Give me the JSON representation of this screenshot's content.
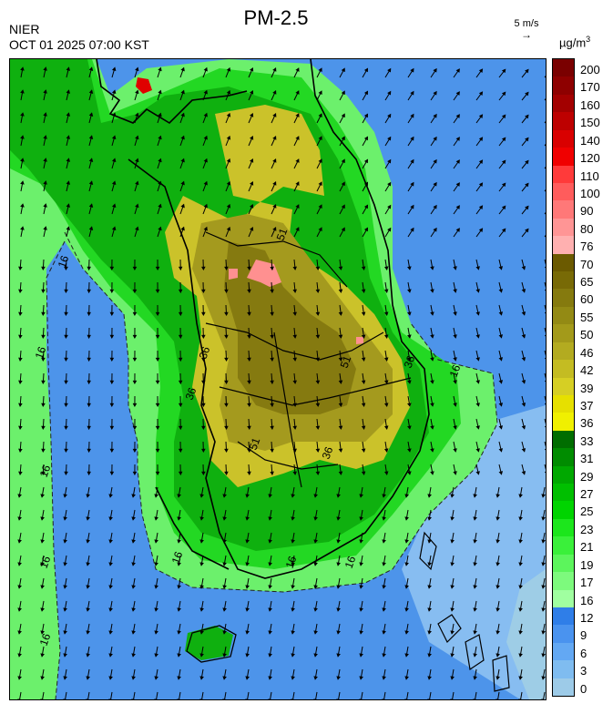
{
  "header": {
    "title": "PM-2.5",
    "agency": "NIER",
    "datetime": "OCT 01 2025 07:00 KST",
    "vector_scale": "5 m/s",
    "unit_base": "µg/m",
    "unit_exp": "3"
  },
  "legend": {
    "labels": [
      "200",
      "170",
      "160",
      "150",
      "140",
      "120",
      "110",
      "100",
      "90",
      "80",
      "76",
      "70",
      "65",
      "60",
      "55",
      "50",
      "46",
      "42",
      "39",
      "37",
      "36",
      "33",
      "31",
      "29",
      "27",
      "25",
      "23",
      "21",
      "19",
      "17",
      "16",
      "12",
      "9",
      "6",
      "3",
      "0"
    ],
    "colors": [
      "#7a0000",
      "#8e0000",
      "#a30000",
      "#bd0000",
      "#d90000",
      "#f00000",
      "#ff3a3a",
      "#ff5c5c",
      "#ff7878",
      "#ff9595",
      "#ffb0b0",
      "#6b5a00",
      "#786a06",
      "#857a0e",
      "#938a14",
      "#a39a1a",
      "#b3ab20",
      "#c4bc22",
      "#d6cf24",
      "#e6e000",
      "#f0f000",
      "#006d00",
      "#008c00",
      "#00a800",
      "#00bf00",
      "#00d400",
      "#1ce61c",
      "#3af03a",
      "#5cf55c",
      "#7dfa7d",
      "#a0ffa0",
      "#2f7ee8",
      "#4a93ef",
      "#63a8f3",
      "#7fbcf0",
      "#9dcbe8"
    ]
  },
  "map": {
    "contours": [
      "16",
      "16",
      "16",
      "16",
      "16",
      "16",
      "16",
      "16",
      "16",
      "36",
      "36",
      "36",
      "36",
      "51",
      "51",
      "51"
    ],
    "colors": {
      "sea": "#4d94ea",
      "sea_light": "#87bdf1",
      "sea_pale": "#9ecde6",
      "green_light": "#6cf06c",
      "green": "#23d823",
      "green_mid": "#0fb00f",
      "green_dark": "#0a7f0a",
      "olive_light": "#cbc22a",
      "olive": "#a49a1e",
      "olive_dark": "#857a10",
      "pink": "#ff9090",
      "red": "#e00000",
      "border": "#000000"
    }
  }
}
